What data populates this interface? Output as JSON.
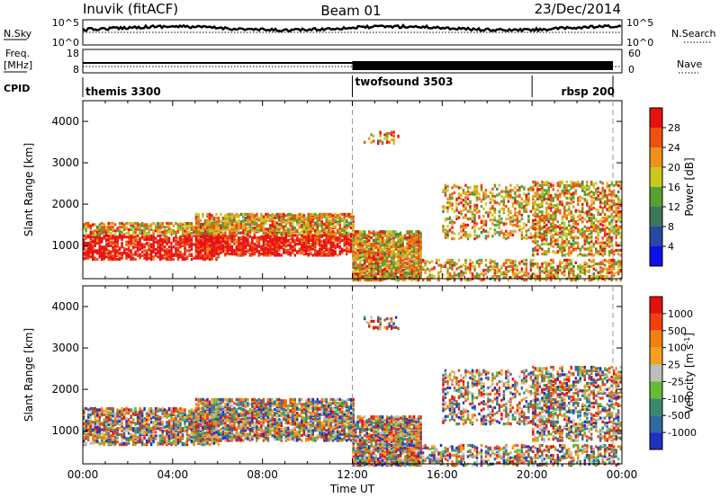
{
  "header": {
    "station": "Inuvik (fitACF)",
    "beam": "Beam 01",
    "date": "23/Dec/2014"
  },
  "top_panels": {
    "nsky_label": "N.Sky",
    "nsearch_label": "N.Search",
    "freq_label": "Freq.",
    "freq_unit": "[MHz]",
    "nave_label": "Nave",
    "cpid_label": "CPID",
    "nsky_ticks": [
      "10^5",
      "10^0"
    ],
    "nsearch_ticks": [
      "10^5",
      "10^0"
    ],
    "freq_ticks": [
      "18",
      "8"
    ],
    "nave_ticks": [
      "60",
      "0"
    ],
    "cpid_segments": [
      {
        "name": "themis 3300",
        "start_h": 0,
        "end_h": 12
      },
      {
        "name": "twofsound 3503",
        "start_h": 12,
        "end_h": 20
      },
      {
        "name": "rbsp 200",
        "start_h": 20,
        "end_h": 24
      }
    ]
  },
  "colors": {
    "power": [
      "#1010e8",
      "#2848a8",
      "#3c7858",
      "#58a030",
      "#c8c820",
      "#f09018",
      "#f05010",
      "#e81010"
    ],
    "velocity": [
      "#2030c0",
      "#2f6aa0",
      "#3a8a6a",
      "#66bb33",
      "#bebebe",
      "#f4a020",
      "#f28010",
      "#f04010",
      "#e01010"
    ]
  },
  "chart_data": [
    {
      "type": "heatmap",
      "panel": "power",
      "xlabel": "",
      "ylabel": "Slant Range [km]",
      "xlim": [
        0,
        24
      ],
      "ylim": [
        200,
        4500
      ],
      "yticks": [
        "1000",
        "2000",
        "3000",
        "4000"
      ],
      "colorbar_label": "Power [dB]",
      "colorbar_ticks": [
        "4",
        "8",
        "12",
        "16",
        "20",
        "24",
        "28"
      ],
      "colorbar_range": [
        0,
        32
      ]
    },
    {
      "type": "heatmap",
      "panel": "velocity",
      "xlabel": "Time UT",
      "ylabel": "Slant Range [km]",
      "xlim": [
        0,
        24
      ],
      "ylim": [
        200,
        4500
      ],
      "xticks": [
        "00:00",
        "04:00",
        "08:00",
        "12:00",
        "16:00",
        "20:00",
        "00:00"
      ],
      "yticks": [
        "1000",
        "2000",
        "3000",
        "4000"
      ],
      "colorbar_label": "Velocity [m s",
      "colorbar_label_exp": "-1",
      "colorbar_label_end": "]",
      "colorbar_ticks": [
        "1000",
        "500",
        "100",
        "25",
        "-25",
        "-100",
        "-500",
        "-1000"
      ]
    }
  ]
}
